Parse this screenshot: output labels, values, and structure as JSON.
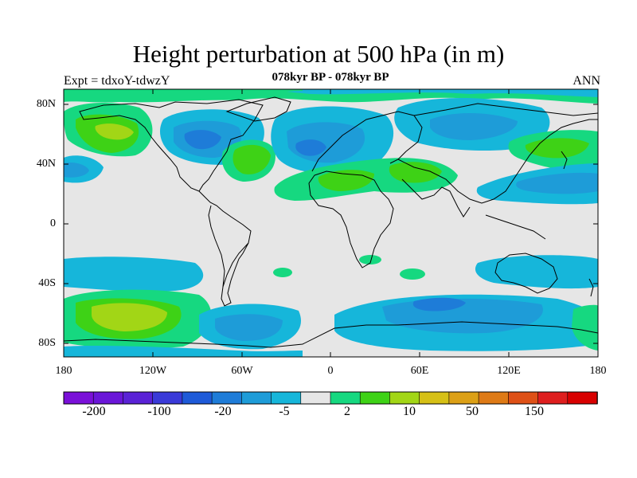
{
  "header": {
    "title": "Height perturbation at 500 hPa (in m)",
    "subtitle": "078kyr BP - 078kyr BP",
    "left_label": "Expt = tdxoY-tdwzY",
    "right_label": "ANN"
  },
  "map": {
    "lat_labels": [
      "80N",
      "40N",
      "0",
      "40S",
      "80S"
    ],
    "lon_labels": [
      "180",
      "120W",
      "60W",
      "0",
      "60E",
      "120E",
      "180"
    ],
    "background_color": "#e6e6e6"
  },
  "colorbar": {
    "colors": [
      "#7a10d8",
      "#6a16d8",
      "#5a22d6",
      "#3a3ad8",
      "#1e5ad8",
      "#1e7cd8",
      "#1e9cd8",
      "#16b6da",
      "#e6e6e6",
      "#16d880",
      "#3ed216",
      "#a2d616",
      "#d6c016",
      "#dca016",
      "#de7a16",
      "#de5016",
      "#de1e1e",
      "#d80000"
    ],
    "labels": [
      "-200",
      "-100",
      "-20",
      "-5",
      "2",
      "10",
      "50",
      "150"
    ]
  }
}
